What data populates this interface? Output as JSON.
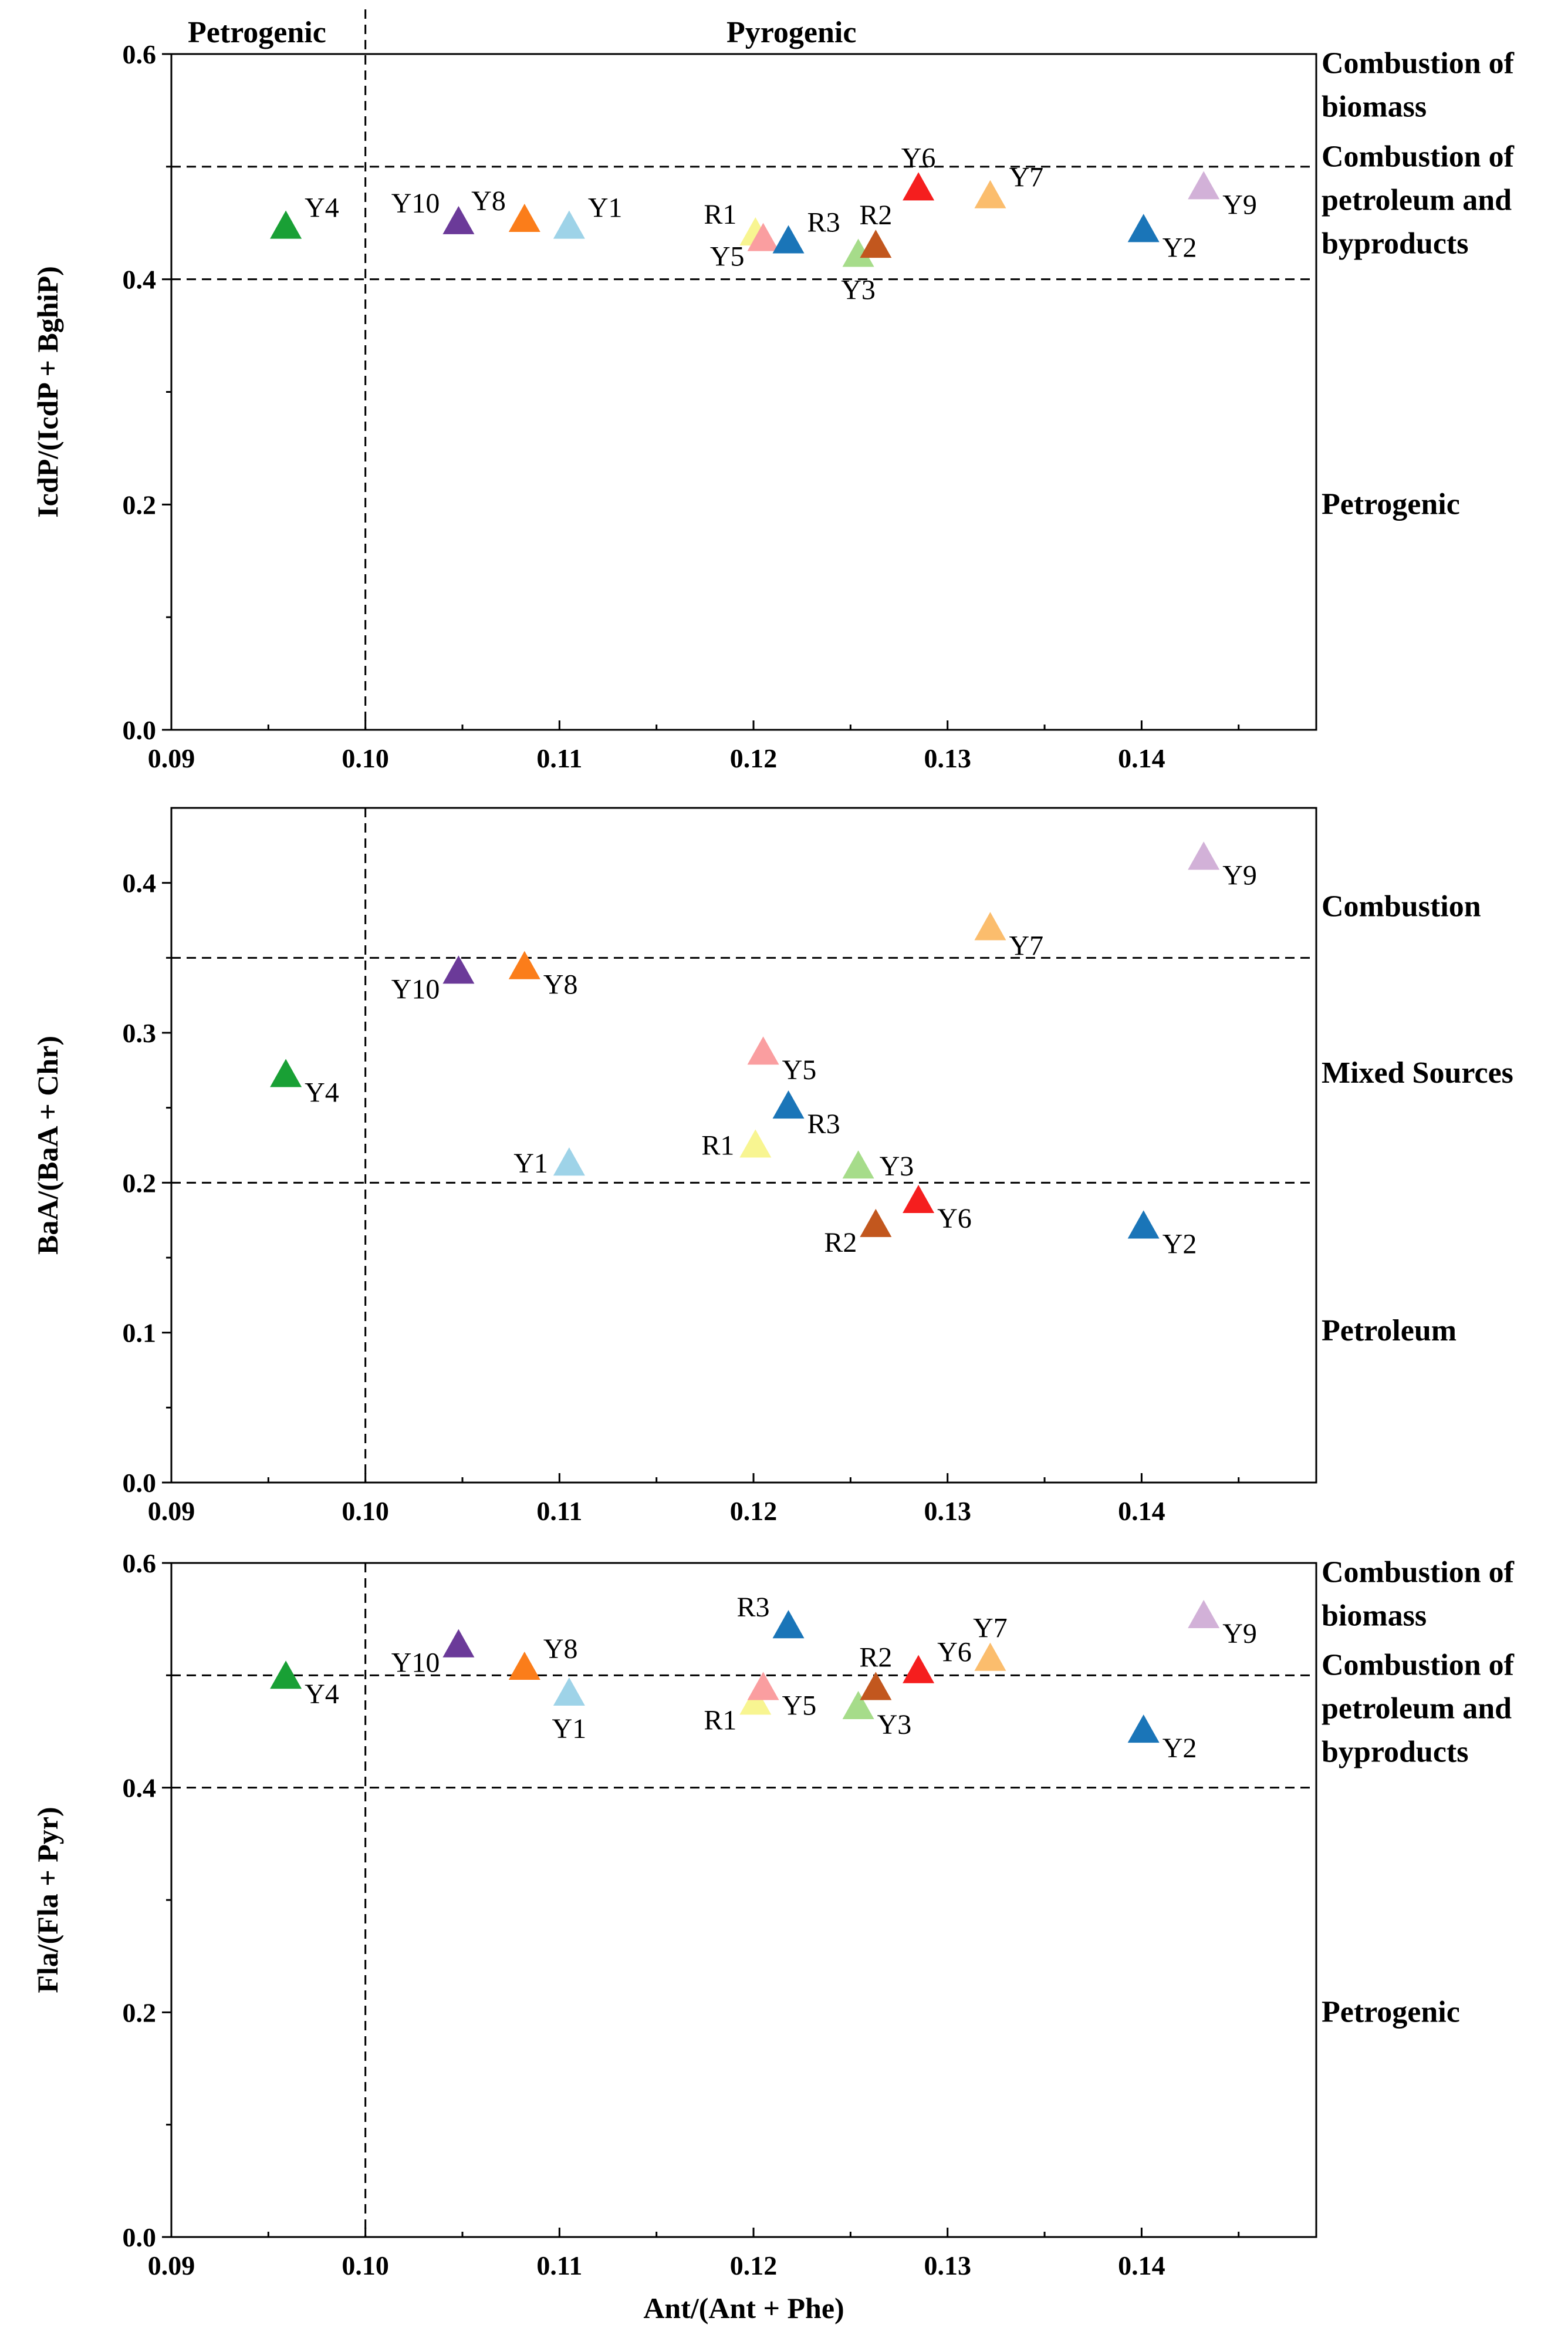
{
  "figure": {
    "top_label_left": "Petrogenic",
    "top_label_right": "Pyrogenic",
    "shared_xlabel": "Ant/(Ant + Phe)"
  },
  "samples": {
    "Y1": {
      "color": "#9ed3e8"
    },
    "Y2": {
      "color": "#1a75b8"
    },
    "Y3": {
      "color": "#a6dc8a"
    },
    "Y4": {
      "color": "#19a035"
    },
    "Y5": {
      "color": "#fa9ea0"
    },
    "Y6": {
      "color": "#f51e1e"
    },
    "Y7": {
      "color": "#fbbd6d"
    },
    "Y8": {
      "color": "#fb7d1a"
    },
    "Y9": {
      "color": "#d2b1d8"
    },
    "Y10": {
      "color": "#6b3a99"
    },
    "R1": {
      "color": "#f8f591"
    },
    "R2": {
      "color": "#c2571e"
    },
    "R3": {
      "color": "#1a75b8"
    }
  },
  "chart_data": [
    {
      "type": "scatter",
      "ylabel": "IcdP/(IcdP + BghiP)",
      "xlim": [
        0.09,
        0.149
      ],
      "ylim": [
        0,
        0.6
      ],
      "xticks": [
        "0.09",
        "0.10",
        "0.11",
        "0.12",
        "0.13",
        "0.14"
      ],
      "yticks": [
        "0.0",
        "0.2",
        "0.4",
        "0.6"
      ],
      "hlines": [
        0.4,
        0.5
      ],
      "vline": 0.1,
      "region_labels": [
        {
          "lines": [
            "Combustion of",
            "biomass"
          ],
          "y": 0.572
        },
        {
          "lines": [
            "Combustion of",
            "petroleum and",
            "byproducts"
          ],
          "y": 0.47
        },
        {
          "lines": [
            "Petrogenic"
          ],
          "y": 0.2
        }
      ],
      "points": [
        {
          "label": "Y4",
          "x": 0.0959,
          "y": 0.447,
          "pos": "tr"
        },
        {
          "label": "Y10",
          "x": 0.1048,
          "y": 0.451,
          "pos": "tl"
        },
        {
          "label": "Y8",
          "x": 0.1082,
          "y": 0.453,
          "pos": "tl"
        },
        {
          "label": "Y1",
          "x": 0.1105,
          "y": 0.447,
          "pos": "tr"
        },
        {
          "label": "R1",
          "x": 0.1201,
          "y": 0.441,
          "pos": "tl"
        },
        {
          "label": "Y5",
          "x": 0.1205,
          "y": 0.436,
          "pos": "bl"
        },
        {
          "label": "R3",
          "x": 0.1218,
          "y": 0.434,
          "pos": "tr"
        },
        {
          "label": "Y3",
          "x": 0.1254,
          "y": 0.422,
          "pos": "b"
        },
        {
          "label": "R2",
          "x": 0.1263,
          "y": 0.43,
          "pos": "t"
        },
        {
          "label": "Y6",
          "x": 0.1285,
          "y": 0.481,
          "pos": "t"
        },
        {
          "label": "Y7",
          "x": 0.1322,
          "y": 0.474,
          "pos": "tr"
        },
        {
          "label": "Y2",
          "x": 0.1401,
          "y": 0.444,
          "pos": "br"
        },
        {
          "label": "Y9",
          "x": 0.1432,
          "y": 0.482,
          "pos": "br"
        }
      ]
    },
    {
      "type": "scatter",
      "ylabel": "BaA/(BaA + Chr)",
      "xlim": [
        0.09,
        0.149
      ],
      "ylim": [
        0,
        0.45
      ],
      "xticks": [
        "0.09",
        "0.10",
        "0.11",
        "0.12",
        "0.13",
        "0.14"
      ],
      "yticks": [
        "0.0",
        "0.1",
        "0.2",
        "0.3",
        "0.4"
      ],
      "hlines": [
        0.2,
        0.35
      ],
      "vline": 0.1,
      "region_labels": [
        {
          "lines": [
            "Combustion"
          ],
          "y": 0.384
        },
        {
          "lines": [
            "Mixed Sources"
          ],
          "y": 0.273
        },
        {
          "lines": [
            "Petroleum"
          ],
          "y": 0.101
        }
      ],
      "points": [
        {
          "label": "Y4",
          "x": 0.0959,
          "y": 0.272,
          "pos": "br"
        },
        {
          "label": "Y10",
          "x": 0.1048,
          "y": 0.341,
          "pos": "bl"
        },
        {
          "label": "Y8",
          "x": 0.1082,
          "y": 0.344,
          "pos": "br"
        },
        {
          "label": "Y1",
          "x": 0.1105,
          "y": 0.213,
          "pos": "l"
        },
        {
          "label": "R1",
          "x": 0.1201,
          "y": 0.225,
          "pos": "l"
        },
        {
          "label": "Y5",
          "x": 0.1205,
          "y": 0.287,
          "pos": "br"
        },
        {
          "label": "R3",
          "x": 0.1218,
          "y": 0.251,
          "pos": "br"
        },
        {
          "label": "Y3",
          "x": 0.1254,
          "y": 0.211,
          "pos": "r"
        },
        {
          "label": "R2",
          "x": 0.1263,
          "y": 0.172,
          "pos": "bl"
        },
        {
          "label": "Y6",
          "x": 0.1285,
          "y": 0.188,
          "pos": "br"
        },
        {
          "label": "Y7",
          "x": 0.1322,
          "y": 0.37,
          "pos": "br"
        },
        {
          "label": "Y2",
          "x": 0.1401,
          "y": 0.171,
          "pos": "br"
        },
        {
          "label": "Y9",
          "x": 0.1432,
          "y": 0.417,
          "pos": "br"
        }
      ]
    },
    {
      "type": "scatter",
      "ylabel": "Fla/(Fla + Pyr)",
      "xlabel": "Ant/(Ant + Phe)",
      "xlim": [
        0.09,
        0.149
      ],
      "ylim": [
        0,
        0.6
      ],
      "xticks": [
        "0.09",
        "0.10",
        "0.11",
        "0.12",
        "0.13",
        "0.14"
      ],
      "yticks": [
        "0.0",
        "0.2",
        "0.4",
        "0.6"
      ],
      "hlines": [
        0.4,
        0.5
      ],
      "vline": 0.1,
      "region_labels": [
        {
          "lines": [
            "Combustion of",
            "biomass"
          ],
          "y": 0.572
        },
        {
          "lines": [
            "Combustion of",
            "petroleum and",
            "byproducts"
          ],
          "y": 0.47
        },
        {
          "lines": [
            "Petrogenic"
          ],
          "y": 0.2
        }
      ],
      "points": [
        {
          "label": "Y4",
          "x": 0.0959,
          "y": 0.499,
          "pos": "br"
        },
        {
          "label": "Y10",
          "x": 0.1048,
          "y": 0.527,
          "pos": "bl"
        },
        {
          "label": "Y8",
          "x": 0.1082,
          "y": 0.507,
          "pos": "tr"
        },
        {
          "label": "Y1",
          "x": 0.1105,
          "y": 0.484,
          "pos": "b"
        },
        {
          "label": "R1",
          "x": 0.1201,
          "y": 0.476,
          "pos": "bl"
        },
        {
          "label": "Y5",
          "x": 0.1205,
          "y": 0.489,
          "pos": "br"
        },
        {
          "label": "R3",
          "x": 0.1218,
          "y": 0.544,
          "pos": "tl"
        },
        {
          "label": "Y3",
          "x": 0.1254,
          "y": 0.472,
          "pos": "br"
        },
        {
          "label": "R2",
          "x": 0.1263,
          "y": 0.489,
          "pos": "t"
        },
        {
          "label": "Y6",
          "x": 0.1285,
          "y": 0.504,
          "pos": "tr"
        },
        {
          "label": "Y7",
          "x": 0.1322,
          "y": 0.515,
          "pos": "t"
        },
        {
          "label": "Y2",
          "x": 0.1401,
          "y": 0.451,
          "pos": "br"
        },
        {
          "label": "Y9",
          "x": 0.1432,
          "y": 0.553,
          "pos": "br"
        }
      ]
    }
  ]
}
